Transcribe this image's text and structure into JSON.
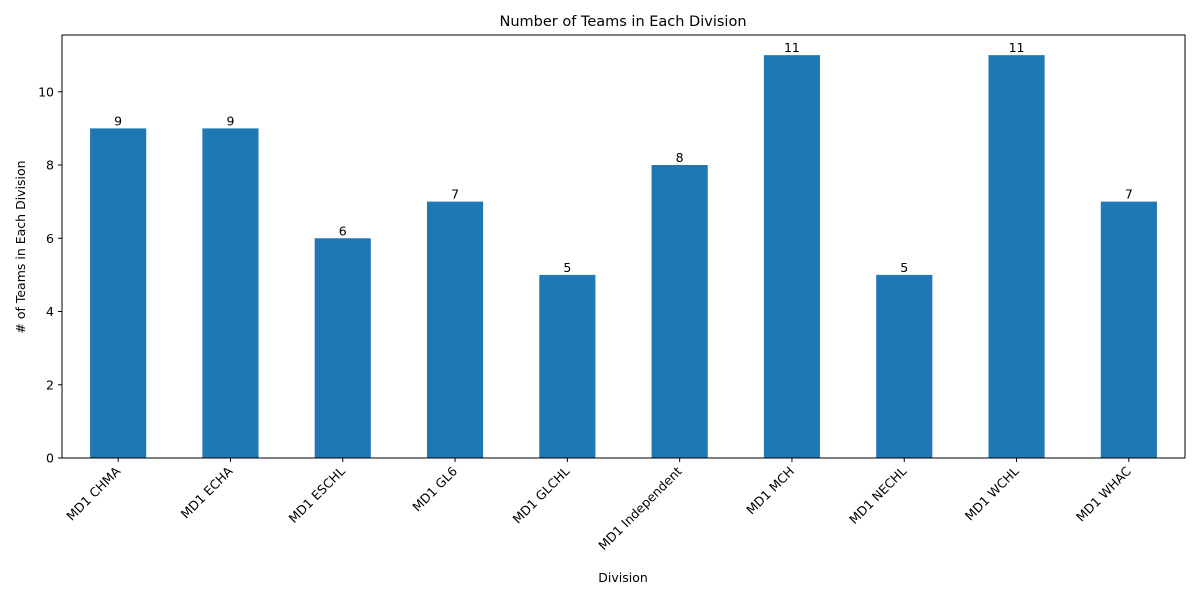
{
  "chart_data": {
    "type": "bar",
    "title": "Number of Teams in Each Division",
    "xlabel": "Division",
    "ylabel": "# of Teams in Each Division",
    "categories": [
      "MD1 CHMA",
      "MD1 ECHA",
      "MD1 ESCHL",
      "MD1 GL6",
      "MD1 GLCHL",
      "MD1 Independent",
      "MD1 MCH",
      "MD1 NECHL",
      "MD1 WCHL",
      "MD1 WHAC"
    ],
    "values": [
      9,
      9,
      6,
      7,
      5,
      8,
      11,
      5,
      11,
      7
    ],
    "ylim": [
      0,
      11.55
    ],
    "yticks": [
      0,
      2,
      4,
      6,
      8,
      10
    ],
    "grid": false,
    "bar_color": "#1f77b4",
    "data_labels": true
  }
}
